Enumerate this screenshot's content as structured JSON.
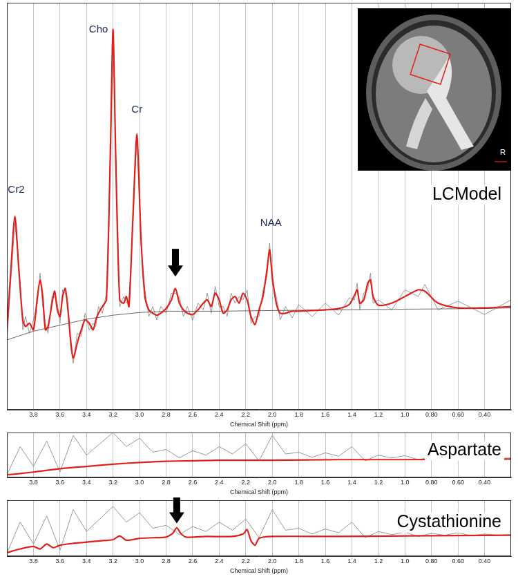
{
  "chart_data": [
    {
      "type": "line",
      "title": "LCModel",
      "x_label": "Chemical Shift (ppm)",
      "xlim": [
        4.0,
        0.2
      ],
      "xticks": [
        3.8,
        3.6,
        3.4,
        3.2,
        {
          "value": 3,
          "label": "3.0"
        },
        2.8,
        2.6,
        2.4,
        2.2,
        {
          "value": 2,
          "label": "2.0"
        },
        1.8,
        1.6,
        1.4,
        1.2,
        {
          "value": 1,
          "label": "1.0"
        },
        {
          "value": 0.8,
          "label": "0.80"
        },
        {
          "value": 0.6,
          "label": "0.60"
        },
        {
          "value": 0.4,
          "label": "0.40"
        }
      ],
      "ylim": [
        -11,
        50
      ],
      "grid": true,
      "tick_labels": "x",
      "series": [
        {
          "color": "#8c8c8c",
          "x": [
            4.0,
            3.97,
            3.94,
            3.91,
            3.88,
            3.86,
            3.83,
            3.8,
            3.77,
            3.75,
            3.73,
            3.71,
            3.69,
            3.66,
            3.64,
            3.62,
            3.6,
            3.58,
            3.56,
            3.54,
            3.52,
            3.5,
            3.47,
            3.44,
            3.41,
            3.38,
            3.35,
            3.33,
            3.31,
            3.28,
            3.25,
            3.22,
            3.2,
            3.18,
            3.15,
            3.12,
            3.1,
            3.08,
            3.05,
            3.02,
            2.99,
            2.96,
            2.93,
            2.9,
            2.87,
            2.84,
            2.8,
            2.76,
            2.73,
            2.7,
            2.67,
            2.64,
            2.6,
            2.56,
            2.52,
            2.49,
            2.46,
            2.43,
            2.4,
            2.37,
            2.34,
            2.31,
            2.28,
            2.25,
            2.22,
            2.19,
            2.16,
            2.13,
            2.1,
            2.07,
            2.04,
            2.02,
            2.0,
            1.97,
            1.94,
            1.9,
            1.85,
            1.8,
            1.7,
            1.6,
            1.5,
            1.42,
            1.38,
            1.36,
            1.34,
            1.31,
            1.28,
            1.26,
            1.24,
            1.2,
            1.1,
            1.0,
            0.9,
            0.85,
            0.75,
            0.6,
            0.4,
            0.2
          ],
          "values": [
            -1.0,
            8.5,
            17.0,
            11.0,
            1.0,
            3.0,
            0.5,
            2.5,
            5.0,
            9.5,
            4.5,
            2.0,
            0.5,
            6.0,
            6.0,
            5.0,
            2.0,
            7.0,
            6.5,
            5.0,
            -1.5,
            -4.0,
            0.5,
            0.0,
            3.5,
            1.0,
            2.0,
            1.5,
            4.5,
            3.5,
            6.5,
            27.0,
            45.5,
            28.0,
            4.5,
            6.0,
            5.0,
            5.5,
            17.0,
            30.5,
            14.0,
            7.0,
            3.0,
            4.5,
            2.5,
            4.5,
            3.5,
            6.5,
            6.5,
            6.0,
            3.0,
            4.5,
            2.5,
            5.0,
            4.0,
            6.5,
            3.5,
            7.5,
            4.5,
            4.5,
            3.0,
            6.5,
            5.0,
            6.0,
            5.5,
            7.0,
            2.0,
            3.0,
            3.0,
            7.0,
            9.0,
            14.0,
            8.0,
            6.0,
            2.5,
            4.5,
            2.8,
            4.8,
            3.0,
            5.0,
            3.2,
            5.8,
            5.5,
            8.0,
            4.0,
            6.5,
            7.0,
            9.5,
            5.0,
            5.5,
            4.0,
            7.0,
            6.0,
            7.8,
            4.0,
            5.3,
            3.3,
            5.5
          ]
        },
        {
          "color": "#555555",
          "x": [
            4.0,
            3.8,
            3.6,
            3.4,
            3.2,
            3.0,
            2.8,
            2.6,
            2.4,
            2.0,
            1.5,
            1.0,
            0.4,
            0.2
          ],
          "values": [
            -0.5,
            0.8,
            1.7,
            2.6,
            3.2,
            3.6,
            3.8,
            3.8,
            3.8,
            3.9,
            4.0,
            4.1,
            4.2,
            4.3
          ]
        },
        {
          "color": "#e0201b",
          "line_style": "bold",
          "x": [
            4.0,
            3.97,
            3.94,
            3.91,
            3.88,
            3.86,
            3.83,
            3.8,
            3.77,
            3.75,
            3.73,
            3.71,
            3.69,
            3.66,
            3.64,
            3.62,
            3.6,
            3.58,
            3.56,
            3.54,
            3.52,
            3.5,
            3.47,
            3.44,
            3.41,
            3.38,
            3.35,
            3.33,
            3.31,
            3.28,
            3.25,
            3.22,
            3.2,
            3.18,
            3.15,
            3.12,
            3.1,
            3.08,
            3.05,
            3.02,
            2.99,
            2.96,
            2.93,
            2.9,
            2.87,
            2.84,
            2.8,
            2.76,
            2.73,
            2.7,
            2.67,
            2.64,
            2.6,
            2.56,
            2.52,
            2.49,
            2.46,
            2.43,
            2.4,
            2.37,
            2.34,
            2.31,
            2.28,
            2.25,
            2.22,
            2.19,
            2.16,
            2.13,
            2.1,
            2.07,
            2.04,
            2.02,
            2.0,
            1.97,
            1.94,
            1.9,
            1.85,
            1.8,
            1.7,
            1.6,
            1.5,
            1.42,
            1.38,
            1.36,
            1.34,
            1.31,
            1.28,
            1.26,
            1.24,
            1.2,
            1.1,
            1.0,
            0.9,
            0.85,
            0.75,
            0.6,
            0.4,
            0.2
          ],
          "values": [
            1.0,
            10.0,
            18.0,
            10.0,
            2.5,
            1.5,
            2.0,
            1.0,
            6.0,
            8.5,
            6.0,
            1.0,
            1.5,
            5.0,
            6.8,
            4.0,
            3.0,
            6.0,
            7.2,
            4.0,
            -0.5,
            -3.2,
            -1.0,
            1.0,
            2.5,
            2.0,
            1.0,
            2.5,
            3.5,
            4.5,
            5.5,
            28.0,
            46.0,
            27.0,
            5.5,
            5.0,
            6.0,
            4.5,
            18.0,
            30.2,
            15.0,
            6.0,
            4.0,
            3.5,
            3.2,
            3.5,
            4.2,
            5.5,
            7.2,
            5.0,
            4.0,
            3.5,
            3.3,
            4.0,
            5.0,
            5.5,
            4.5,
            6.5,
            5.5,
            3.5,
            4.0,
            5.5,
            6.0,
            5.0,
            6.5,
            5.5,
            3.0,
            1.8,
            4.0,
            6.0,
            10.0,
            13.0,
            9.0,
            5.0,
            3.5,
            3.5,
            3.8,
            3.8,
            3.9,
            4.0,
            4.2,
            4.8,
            6.2,
            7.0,
            5.0,
            5.5,
            8.0,
            8.5,
            6.0,
            4.7,
            5.0,
            6.0,
            7.0,
            6.8,
            5.0,
            4.3,
            4.3,
            4.5
          ]
        }
      ],
      "annotations": [
        {
          "text": "Cr2",
          "x": 3.93,
          "y": 22
        },
        {
          "text": "Cho",
          "x": 3.31,
          "y": 46
        },
        {
          "text": "Cr",
          "x": 3.02,
          "y": 34
        },
        {
          "text": "NAA",
          "x": 2.01,
          "y": 17
        }
      ],
      "arrows": [
        {
          "x": 2.73,
          "y": 9
        }
      ],
      "inset": {
        "label": "R"
      }
    },
    {
      "type": "line",
      "title": "Aspartate",
      "x_label": "Chemical Shift (ppm)",
      "xlim": [
        4.0,
        0.2
      ],
      "xticks": [
        3.8,
        3.6,
        3.4,
        3.2,
        {
          "value": 3,
          "label": "3.0"
        },
        2.8,
        2.6,
        2.4,
        2.2,
        {
          "value": 2,
          "label": "2.0"
        },
        1.8,
        1.6,
        1.4,
        1.2,
        {
          "value": 1,
          "label": "1.0"
        },
        {
          "value": 0.8,
          "label": "0.80"
        },
        {
          "value": 0.6,
          "label": "0.60"
        },
        {
          "value": 0.4,
          "label": "0.40"
        }
      ],
      "ylim": [
        0,
        8
      ],
      "grid": true,
      "tick_labels": "x",
      "series": [
        {
          "color": "#8c8c8c",
          "x": [
            4.0,
            3.9,
            3.8,
            3.7,
            3.6,
            3.5,
            3.4,
            3.3,
            3.2,
            3.1,
            3.0,
            2.9,
            2.8,
            2.7,
            2.6,
            2.5,
            2.4,
            2.3,
            2.2,
            2.1,
            2.0,
            1.9,
            1.8,
            1.7,
            1.6,
            1.5,
            1.4,
            1.3,
            1.2,
            1.1,
            1.0,
            0.9,
            0.8,
            0.7,
            0.6,
            0.5,
            0.4,
            0.3,
            0.2
          ],
          "values": [
            0.5,
            5.5,
            2.0,
            6.5,
            1.0,
            7.5,
            4.0,
            6.0,
            8.0,
            5.5,
            7.0,
            4.5,
            5.0,
            3.5,
            4.8,
            4.0,
            5.5,
            4.2,
            6.0,
            3.0,
            7.5,
            4.2,
            4.5,
            3.6,
            4.4,
            3.8,
            5.5,
            3.0,
            4.0,
            3.5,
            3.9,
            3.2,
            3.7,
            3.4,
            3.8,
            3.3,
            3.6,
            3.4,
            3.5
          ]
        },
        {
          "color": "#e0201b",
          "line_style": "bold",
          "x": [
            4.0,
            3.8,
            3.6,
            3.4,
            3.2,
            3.0,
            2.8,
            2.6,
            2.4,
            2.0,
            1.5,
            1.0,
            0.2
          ],
          "values": [
            0.5,
            1.0,
            1.6,
            2.0,
            2.4,
            2.7,
            2.9,
            3.0,
            3.1,
            3.1,
            3.2,
            3.2,
            3.3
          ]
        }
      ]
    },
    {
      "type": "line",
      "title": "Cystathionine",
      "x_label": "Chemical Shift (ppm)",
      "xlim": [
        4.0,
        0.2
      ],
      "xticks": [
        3.8,
        3.6,
        3.4,
        3.2,
        {
          "value": 3,
          "label": "3.0"
        },
        2.8,
        2.6,
        2.4,
        2.2,
        {
          "value": 2,
          "label": "2.0"
        },
        1.8,
        1.6,
        1.4,
        1.2,
        {
          "value": 1,
          "label": "1.0"
        },
        {
          "value": 0.8,
          "label": "0.80"
        },
        {
          "value": 0.6,
          "label": "0.60"
        },
        {
          "value": 0.4,
          "label": "0.40"
        }
      ],
      "ylim": [
        0,
        9
      ],
      "grid": true,
      "tick_labels": "x",
      "series": [
        {
          "color": "#8c8c8c",
          "x": [
            4.0,
            3.9,
            3.8,
            3.7,
            3.6,
            3.5,
            3.4,
            3.3,
            3.2,
            3.1,
            3.0,
            2.9,
            2.8,
            2.7,
            2.6,
            2.5,
            2.4,
            2.3,
            2.2,
            2.1,
            2.0,
            1.9,
            1.8,
            1.7,
            1.6,
            1.5,
            1.4,
            1.3,
            1.2,
            1.1,
            1.0,
            0.9,
            0.8,
            0.7,
            0.6,
            0.5,
            0.4,
            0.3,
            0.2
          ],
          "values": [
            0.5,
            5.5,
            2.0,
            6.5,
            1.0,
            7.5,
            4.0,
            6.0,
            8.0,
            5.5,
            7.0,
            4.5,
            5.0,
            3.5,
            4.8,
            4.0,
            5.5,
            4.2,
            6.0,
            3.0,
            7.5,
            4.2,
            4.5,
            3.6,
            4.4,
            3.8,
            5.5,
            3.0,
            4.0,
            3.5,
            3.9,
            3.2,
            3.7,
            3.4,
            3.8,
            3.3,
            3.6,
            3.4,
            3.5
          ]
        },
        {
          "color": "#e0201b",
          "line_style": "bold",
          "x": [
            4.0,
            3.9,
            3.8,
            3.75,
            3.7,
            3.65,
            3.6,
            3.5,
            3.4,
            3.3,
            3.2,
            3.15,
            3.1,
            3.0,
            2.9,
            2.8,
            2.75,
            2.72,
            2.69,
            2.65,
            2.5,
            2.3,
            2.22,
            2.19,
            2.16,
            2.13,
            2.1,
            2.0,
            1.5,
            1.0,
            0.2
          ],
          "values": [
            0.6,
            1.2,
            1.6,
            1.2,
            2.0,
            1.4,
            1.8,
            2.1,
            2.3,
            2.5,
            2.7,
            3.3,
            2.6,
            2.9,
            3.0,
            3.1,
            3.7,
            4.6,
            3.7,
            3.1,
            3.2,
            3.2,
            3.6,
            4.3,
            2.5,
            1.8,
            2.9,
            3.2,
            3.2,
            3.3,
            3.4
          ]
        }
      ],
      "arrows": [
        {
          "x": 2.72,
          "y": 5.3
        }
      ]
    }
  ]
}
